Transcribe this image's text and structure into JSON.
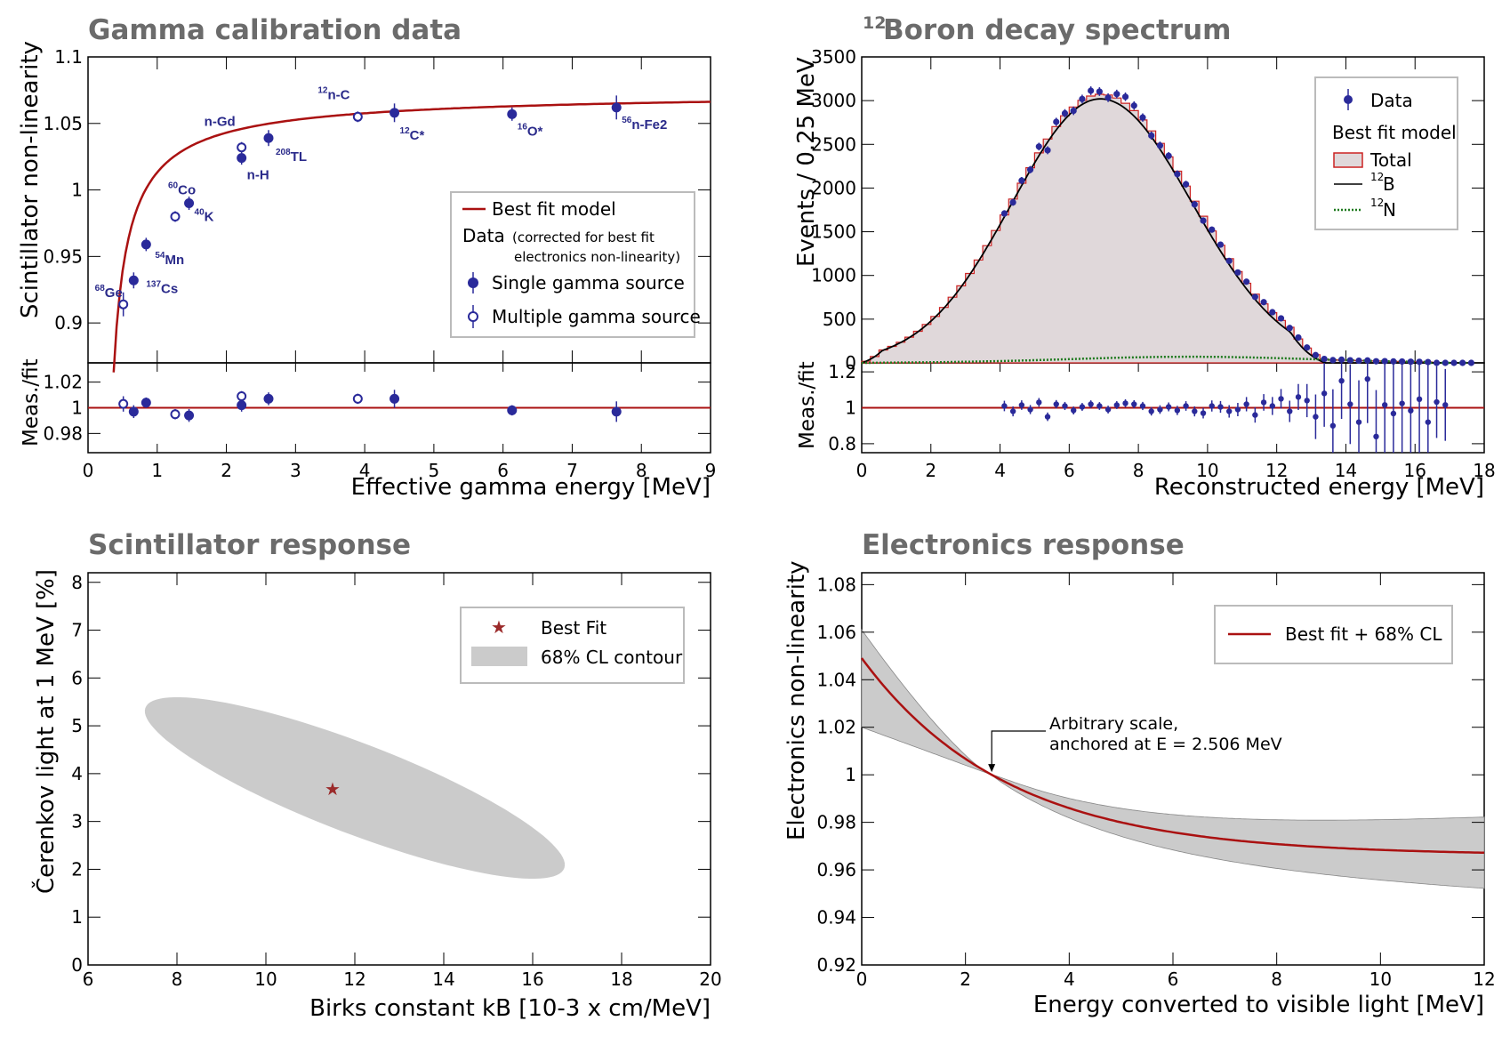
{
  "chart_data": [
    {
      "type": "scatter",
      "title": "Gamma calibration data",
      "xlabel": "Effective gamma energy [MeV]",
      "ylabel": "Scintillator non-linearity",
      "ratio_ylabel": "Meas./fit",
      "xlim": [
        0,
        9
      ],
      "ylim": [
        0.87,
        1.1
      ],
      "ratio_ylim": [
        0.965,
        1.035
      ],
      "xticks": [
        "0",
        "1",
        "2",
        "3",
        "4",
        "5",
        "6",
        "7",
        "8",
        "9"
      ],
      "yticks": [
        "0.9",
        "0.95",
        "1",
        "1.05",
        "1.1"
      ],
      "ratio_yticks": [
        "0.98",
        "1",
        "1.02"
      ],
      "legend": {
        "position": "right",
        "fit_label": "Best fit model",
        "data_label": "Data",
        "data_note_1": "(corrected for best fit",
        "data_note_2": "electronics non-linearity)",
        "single_label": "Single gamma source",
        "multi_label": "Multiple gamma source"
      },
      "fit_model": {
        "a": 1.1,
        "b": 0.058,
        "c": 0.52,
        "d": 0.375,
        "xmin": 0.37,
        "xmax": 9.0
      },
      "points": [
        {
          "x": 0.51,
          "y": 0.914,
          "err": 0.009,
          "multi": true,
          "ratio": 1.003,
          "rerr": 0.006,
          "label": "Ge",
          "sup": "68"
        },
        {
          "x": 0.66,
          "y": 0.932,
          "err": 0.006,
          "multi": false,
          "ratio": 0.997,
          "rerr": 0.005,
          "label": "Cs",
          "sup": "137"
        },
        {
          "x": 0.84,
          "y": 0.959,
          "err": 0.005,
          "multi": false,
          "ratio": 1.004,
          "rerr": 0.004,
          "label": "Mn",
          "sup": "54"
        },
        {
          "x": 1.26,
          "y": 0.98,
          "err": 0.004,
          "multi": true,
          "ratio": 0.995,
          "rerr": 0.004,
          "label": "Co",
          "sup": "60"
        },
        {
          "x": 1.46,
          "y": 0.99,
          "err": 0.005,
          "multi": false,
          "ratio": 0.994,
          "rerr": 0.005,
          "label": "K",
          "sup": "40"
        },
        {
          "x": 2.22,
          "y": 1.024,
          "err": 0.005,
          "multi": false,
          "ratio": 1.002,
          "rerr": 0.005,
          "label": "n-H",
          "sup": ""
        },
        {
          "x": 2.22,
          "y": 1.032,
          "err": 0.004,
          "multi": true,
          "ratio": 1.009,
          "rerr": 0.004,
          "label": "n-Gd",
          "sup": ""
        },
        {
          "x": 2.61,
          "y": 1.039,
          "err": 0.006,
          "multi": false,
          "ratio": 1.007,
          "rerr": 0.005,
          "label": "TL",
          "sup": "208"
        },
        {
          "x": 3.9,
          "y": 1.055,
          "err": 0.004,
          "multi": true,
          "ratio": 1.007,
          "rerr": 0.004,
          "label": "n-C",
          "sup": "12"
        },
        {
          "x": 4.43,
          "y": 1.058,
          "err": 0.007,
          "multi": false,
          "ratio": 1.007,
          "rerr": 0.007,
          "label": "C*",
          "sup": "12"
        },
        {
          "x": 6.13,
          "y": 1.057,
          "err": 0.005,
          "multi": false,
          "ratio": 0.998,
          "rerr": 0.004,
          "label": "O*",
          "sup": "16"
        },
        {
          "x": 7.64,
          "y": 1.062,
          "err": 0.009,
          "multi": false,
          "ratio": 0.997,
          "rerr": 0.008,
          "label": "n-Fe2",
          "sup": "56"
        }
      ]
    },
    {
      "type": "bar",
      "title": "Boron decay spectrum",
      "title_sup": "12",
      "xlabel": "Reconstructed energy [MeV]",
      "ylabel": "Events / 0.25 MeV",
      "ratio_ylabel": "Meas./fit",
      "xlim": [
        0,
        18
      ],
      "ylim": [
        0,
        3500
      ],
      "ratio_ylim": [
        0.75,
        1.25
      ],
      "xticks": [
        "0",
        "2",
        "4",
        "6",
        "8",
        "10",
        "12",
        "14",
        "16",
        "18"
      ],
      "yticks": [
        "0",
        "500",
        "1000",
        "1500",
        "2000",
        "2500",
        "3000",
        "3500"
      ],
      "ratio_yticks": [
        "0.8",
        "1",
        "1.2"
      ],
      "legend": {
        "position": "top-right",
        "data_label": "Data",
        "model_label": "Best fit model",
        "total_label": "Total",
        "b12_label": "B",
        "b12_sup": "12",
        "n12_label": "N",
        "n12_sup": "12"
      },
      "model": {
        "b12_peak": 3020,
        "b12_center": 6.9,
        "b12_left_sigma": 2.55,
        "b12_right_sigma": 2.65,
        "b12_end": 13.4,
        "n12_peak": 70,
        "n12_center": 9.5,
        "n12_sigma": 3.5,
        "n12_end": 16.4,
        "bin_width": 0.25,
        "data_start": 4.0
      },
      "points": [
        {
          "x": 16.0,
          "y": 0
        },
        {
          "x": 17.5,
          "y": 0
        }
      ]
    },
    {
      "type": "scatter",
      "title": "Scintillator response",
      "xlabel": "Birks constant kB [10-3 x cm/MeV]",
      "ylabel": "Čerenkov light at 1 MeV [%]",
      "xlim": [
        6,
        20
      ],
      "ylim": [
        0,
        8.2
      ],
      "xticks": [
        "6",
        "8",
        "10",
        "12",
        "14",
        "16",
        "18",
        "20"
      ],
      "yticks": [
        "0",
        "1",
        "2",
        "3",
        "4",
        "5",
        "6",
        "7",
        "8"
      ],
      "legend": {
        "position": "top-right",
        "best_label": "Best Fit",
        "contour_label": "68% CL contour"
      },
      "best_fit": {
        "x": 11.5,
        "y": 3.7
      },
      "contour": {
        "center_x": 12.0,
        "center_y": 3.7,
        "major": 5.0,
        "minor": 0.95,
        "slope": -0.355
      }
    },
    {
      "type": "line",
      "title": "Electronics response",
      "xlabel": "Energy converted to visible light [MeV]",
      "ylabel": "Electronics non-linearity",
      "xlim": [
        0,
        12
      ],
      "ylim": [
        0.92,
        1.085
      ],
      "xticks": [
        "0",
        "2",
        "4",
        "6",
        "8",
        "10",
        "12"
      ],
      "yticks": [
        "0.92",
        "0.94",
        "0.96",
        "0.98",
        "1",
        "1.02",
        "1.04",
        "1.06",
        "1.08"
      ],
      "legend": {
        "position": "top-right",
        "label": "Best fit + 68% CL"
      },
      "annotation": {
        "line1": "Arbitrary scale,",
        "line2": "anchored at E = 2.506 MeV",
        "x": 2.506,
        "y": 1.0
      },
      "curve": {
        "asymptote": 0.96,
        "amp": 0.083,
        "tau": 2.8,
        "anchor": 2.506
      },
      "band": {
        "low_at_0": 1.02,
        "high_at_0": 1.061,
        "low_at_12": 0.947,
        "high_at_12": 0.977
      }
    }
  ]
}
